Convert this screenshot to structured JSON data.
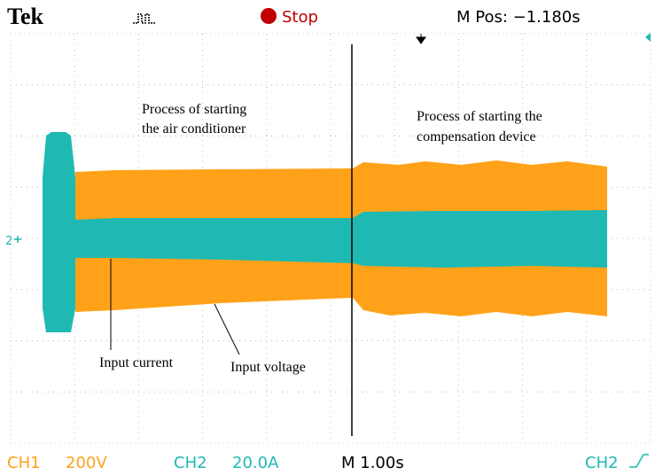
{
  "header": {
    "brand": "Tek",
    "status": "Stop",
    "position": "M Pos: −1.180s"
  },
  "annotations": {
    "air_conditioner": [
      "Process of starting",
      "the air conditioner"
    ],
    "compensation": [
      "Process of starting the",
      "compensation device"
    ],
    "current": "Input current",
    "voltage": "Input voltage"
  },
  "markers": {
    "ch2": "2"
  },
  "footer": {
    "ch1": "CH1",
    "ch1_scale": "200V",
    "ch2": "CH2",
    "ch2_scale": "20.0A",
    "time": "M 1.00s",
    "trigger": "CH2"
  }
}
